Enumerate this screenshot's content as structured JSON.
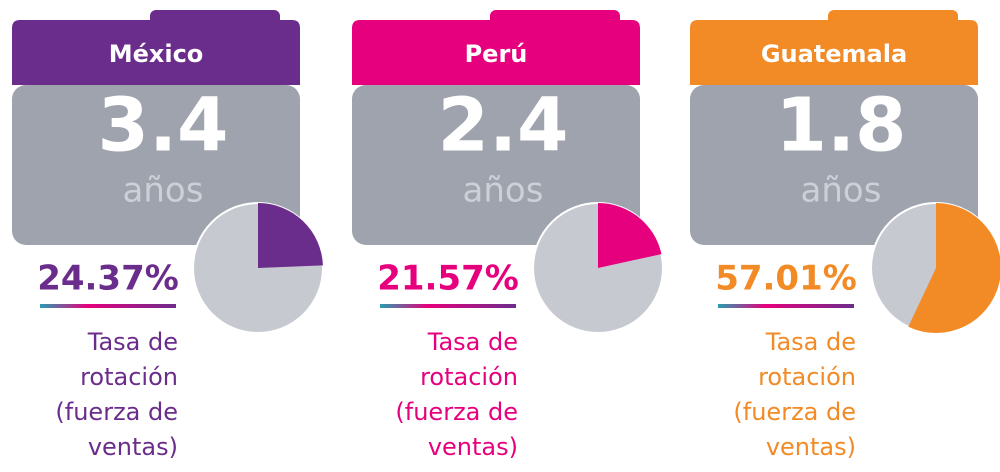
{
  "cards": [
    {
      "country": "México",
      "color": "#6b2d8b",
      "value": 3.4,
      "unit": "años",
      "rate": 24.37,
      "rate_label": "24.37%",
      "caption": [
        "Tasa de",
        "rotación",
        "(fuerza de",
        "ventas)"
      ]
    },
    {
      "country": "Perú",
      "color": "#e6007e",
      "value": 2.4,
      "unit": "años",
      "rate": 21.57,
      "rate_label": "21.57%",
      "caption": [
        "Tasa de",
        "rotación",
        "(fuerza de",
        "ventas)"
      ]
    },
    {
      "country": "Guatemala",
      "color": "#f28a26",
      "value": 1.8,
      "unit": "años",
      "rate": 57.01,
      "rate_label": "57.01%",
      "caption": [
        "Tasa de",
        "rotación",
        "(fuerza de",
        "ventas)"
      ]
    }
  ]
}
